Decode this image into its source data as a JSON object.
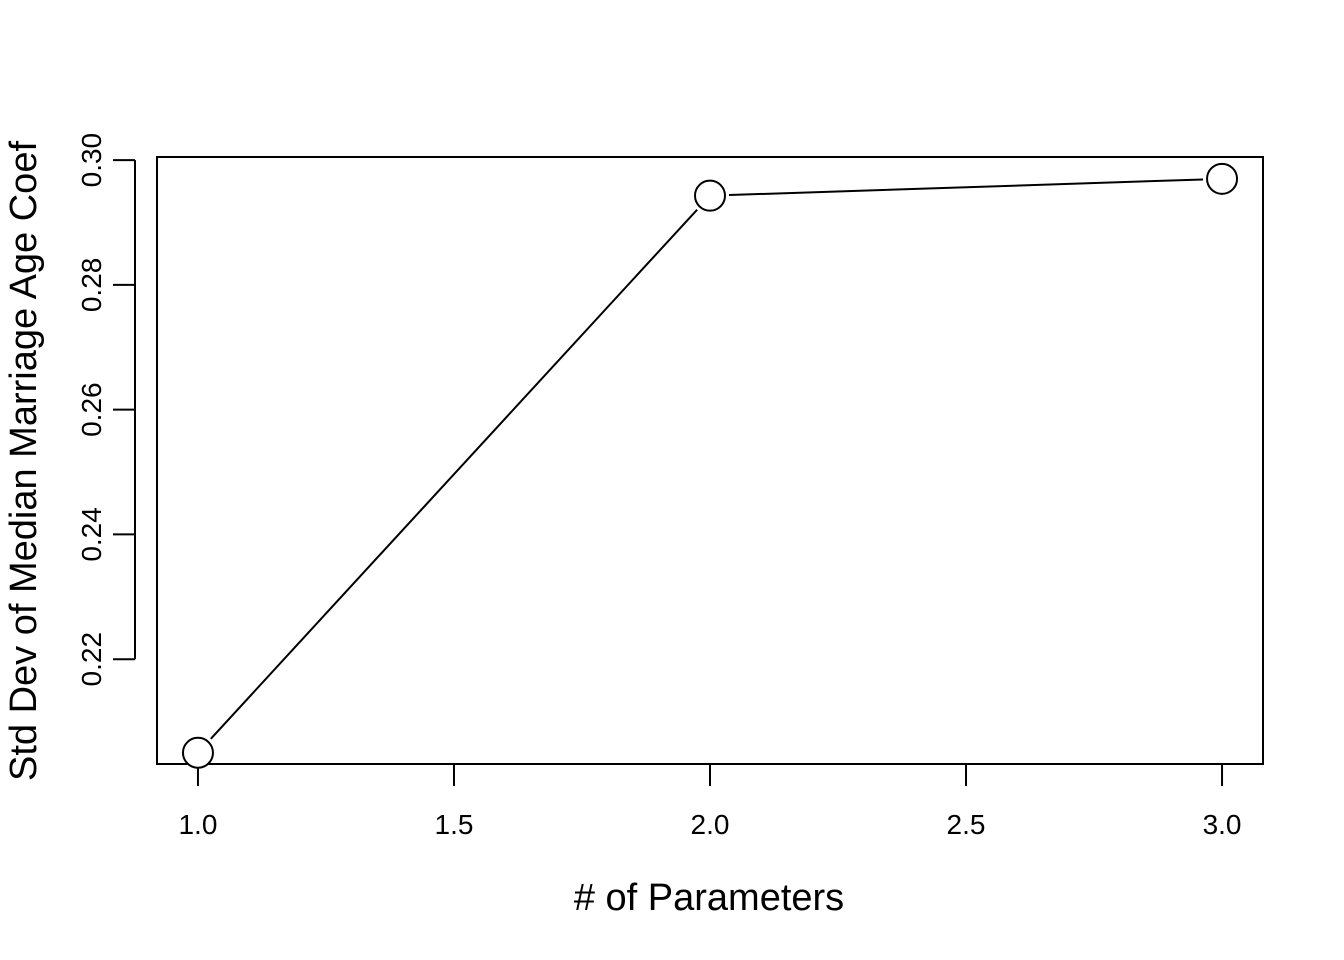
{
  "chart_data": {
    "type": "line",
    "title": "",
    "xlabel": "# of Parameters",
    "ylabel": "Std Dev of Median Marriage Age Coef",
    "x": [
      1.0,
      2.0,
      3.0
    ],
    "series": [
      {
        "values": [
          0.205,
          0.2943,
          0.297
        ]
      }
    ],
    "xlim": [
      0.92,
      3.08
    ],
    "ylim": [
      0.2032,
      0.3005
    ],
    "x_ticks": [
      "1.0",
      "1.5",
      "2.0",
      "2.5",
      "3.0"
    ],
    "x_tick_values": [
      1.0,
      1.5,
      2.0,
      2.5,
      3.0
    ],
    "y_ticks": [
      "0.22",
      "0.24",
      "0.26",
      "0.28",
      "0.30"
    ],
    "y_tick_values": [
      0.22,
      0.24,
      0.26,
      0.28,
      0.3
    ],
    "grid": false,
    "legend": "none",
    "marker": "open-circle",
    "line_color": "#000000"
  }
}
